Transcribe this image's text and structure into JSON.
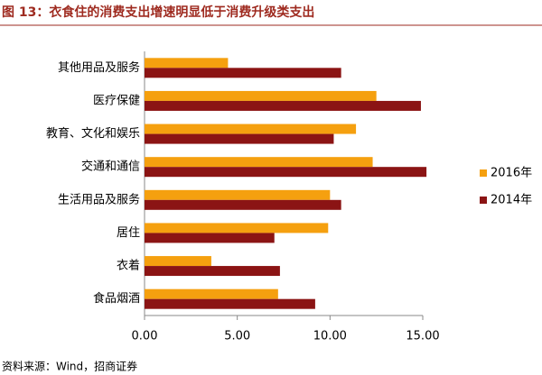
{
  "chart_data": {
    "type": "hbar",
    "title": "图 13：衣食住的消费支出增速明显低于消费升级类支出",
    "source": "资料来源：Wind，招商证券",
    "categories": [
      "其他用品及服务",
      "医疗保健",
      "教育、文化和娱乐",
      "交通和通信",
      "生活用品及服务",
      "居住",
      "衣着",
      "食品烟酒"
    ],
    "series": [
      {
        "name": "2016年",
        "color": "#f5a00f",
        "values": [
          4.5,
          12.5,
          11.4,
          12.3,
          10.0,
          9.9,
          3.6,
          7.2
        ]
      },
      {
        "name": "2014年",
        "color": "#8b1414",
        "values": [
          10.6,
          14.9,
          10.2,
          15.2,
          10.6,
          7.0,
          7.3,
          9.2
        ]
      }
    ],
    "xlim": [
      0,
      15
    ],
    "xticks": [
      {
        "value": 0,
        "label": "0.00"
      },
      {
        "value": 5,
        "label": "5.00"
      },
      {
        "value": 10,
        "label": "10.00"
      },
      {
        "value": 15,
        "label": "15.00"
      }
    ],
    "legend": "right"
  }
}
